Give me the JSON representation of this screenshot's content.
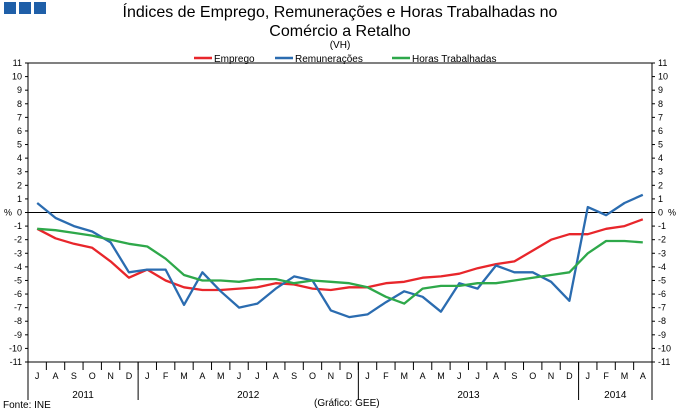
{
  "header": {
    "title_line1": "Índices de Emprego, Remunerações e Horas Trabalhadas no",
    "title_line2": "Comércio a Retalho",
    "subtitle": "(VH)"
  },
  "footer": {
    "source": "Fonte: INE",
    "credit": "(Gráfico: GEE)"
  },
  "chart_data": {
    "type": "line",
    "title": "Índices de Emprego, Remunerações e Horas Trabalhadas no Comércio a Retalho",
    "unit_label": "%",
    "ylim": [
      -11,
      11
    ],
    "yticks": [
      11,
      10,
      9,
      8,
      7,
      6,
      5,
      4,
      3,
      2,
      1,
      0,
      -1,
      -2,
      -3,
      -4,
      -5,
      -6,
      -7,
      -8,
      -9,
      -10,
      -11
    ],
    "grid": false,
    "legend_position": "top",
    "x": [
      "J",
      "A",
      "S",
      "O",
      "N",
      "D",
      "J",
      "F",
      "M",
      "A",
      "M",
      "J",
      "J",
      "A",
      "S",
      "O",
      "N",
      "D",
      "J",
      "F",
      "M",
      "A",
      "M",
      "J",
      "J",
      "A",
      "S",
      "O",
      "N",
      "D",
      "J",
      "F",
      "M",
      "A"
    ],
    "year_groups": [
      {
        "label": "2011",
        "start": 0,
        "count": 6
      },
      {
        "label": "2012",
        "start": 6,
        "count": 12
      },
      {
        "label": "2013",
        "start": 18,
        "count": 12
      },
      {
        "label": "2014",
        "start": 30,
        "count": 4
      }
    ],
    "series": [
      {
        "name": "Emprego",
        "color": "#e8262b",
        "values": [
          -1.2,
          -1.9,
          -2.3,
          -2.6,
          -3.6,
          -4.8,
          -4.2,
          -5.0,
          -5.5,
          -5.7,
          -5.7,
          -5.6,
          -5.5,
          -5.2,
          -5.3,
          -5.6,
          -5.7,
          -5.5,
          -5.5,
          -5.2,
          -5.1,
          -4.8,
          -4.7,
          -4.5,
          -4.1,
          -3.8,
          -3.6,
          -2.8,
          -2.0,
          -1.6,
          -1.6,
          -1.2,
          -1.0,
          -0.5
        ]
      },
      {
        "name": "Remunerações",
        "color": "#2b6cb0",
        "values": [
          0.7,
          -0.4,
          -1.0,
          -1.4,
          -2.2,
          -4.4,
          -4.2,
          -4.2,
          -6.8,
          -4.4,
          -5.8,
          -7.0,
          -6.7,
          -5.6,
          -4.7,
          -5.0,
          -7.2,
          -7.7,
          -7.5,
          -6.6,
          -5.8,
          -6.2,
          -7.3,
          -5.2,
          -5.6,
          -3.9,
          -4.4,
          -4.4,
          -5.1,
          -6.5,
          0.4,
          -0.2,
          0.7,
          1.3
        ]
      },
      {
        "name": "Horas Trabalhadas",
        "color": "#2ea84a",
        "values": [
          -1.2,
          -1.3,
          -1.5,
          -1.7,
          -2.0,
          -2.3,
          -2.5,
          -3.4,
          -4.6,
          -5.0,
          -5.0,
          -5.1,
          -4.9,
          -4.9,
          -5.2,
          -5.0,
          -5.1,
          -5.2,
          -5.5,
          -6.2,
          -6.7,
          -5.6,
          -5.4,
          -5.4,
          -5.2,
          -5.2,
          -5.0,
          -4.8,
          -4.6,
          -4.4,
          -3.0,
          -2.1,
          -2.1,
          -2.2
        ]
      }
    ]
  }
}
